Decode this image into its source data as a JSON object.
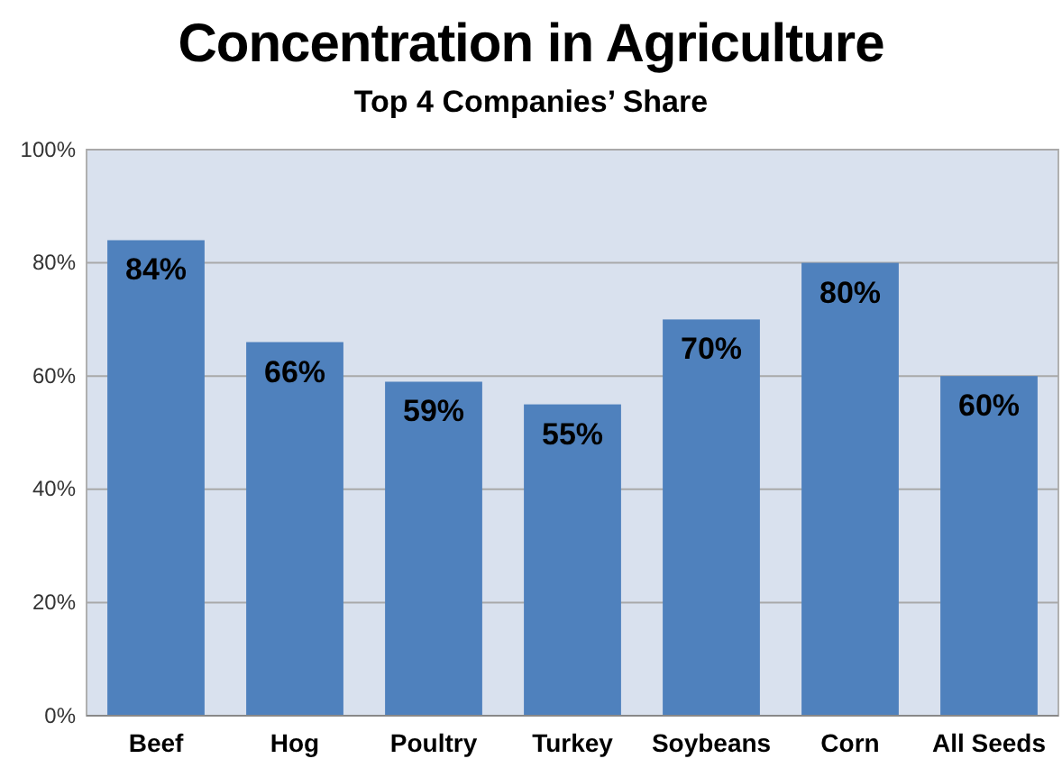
{
  "chart_data": {
    "type": "bar",
    "title": "Concentration in Agriculture",
    "subtitle": "Top 4 Companies’ Share",
    "categories": [
      "Beef",
      "Hog",
      "Poultry",
      "Turkey",
      "Soybeans",
      "Corn",
      "All Seeds"
    ],
    "values": [
      84,
      66,
      59,
      55,
      70,
      80,
      60
    ],
    "color": "#4f81bd",
    "value_labels": [
      "84%",
      "66%",
      "59%",
      "55%",
      "70%",
      "80%",
      "60%"
    ],
    "ylim": [
      0,
      100
    ],
    "yticks": [
      {
        "value": 0,
        "label": "0%"
      },
      {
        "value": 20,
        "label": "20%"
      },
      {
        "value": 40,
        "label": "40%"
      },
      {
        "value": 60,
        "label": "60%"
      },
      {
        "value": 80,
        "label": "80%"
      },
      {
        "value": 100,
        "label": "100%"
      }
    ],
    "grid": "y"
  }
}
